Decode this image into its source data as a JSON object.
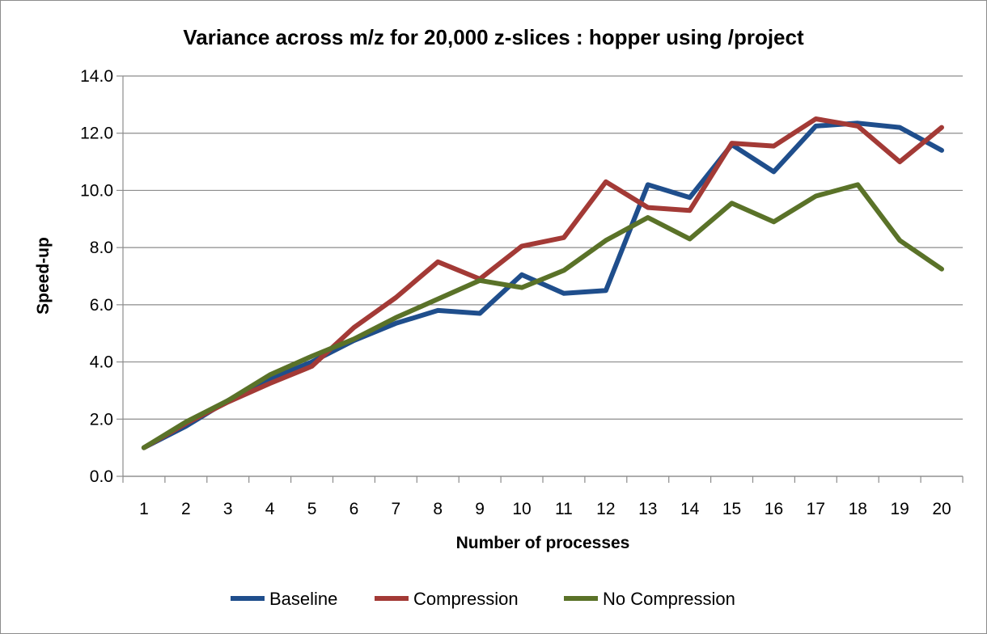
{
  "chart_data": {
    "type": "line",
    "title": "Variance across m/z for 20,000 z-slices : hopper using /project",
    "xlabel": "Number of processes",
    "ylabel": "Speed-up",
    "categories": [
      "1",
      "2",
      "3",
      "4",
      "5",
      "6",
      "7",
      "8",
      "9",
      "10",
      "11",
      "12",
      "13",
      "14",
      "15",
      "16",
      "17",
      "18",
      "19",
      "20"
    ],
    "ylim": [
      0,
      14
    ],
    "yticks": [
      "0.0",
      "2.0",
      "4.0",
      "6.0",
      "8.0",
      "10.0",
      "12.0",
      "14.0"
    ],
    "grid": "horizontal",
    "legend": "bottom",
    "series": [
      {
        "name": "Baseline",
        "color": "#1f4e8c",
        "values": [
          1.0,
          1.75,
          2.65,
          3.4,
          4.0,
          4.75,
          5.35,
          5.8,
          5.7,
          7.05,
          6.4,
          6.5,
          10.2,
          9.75,
          11.6,
          10.65,
          12.25,
          12.35,
          12.2,
          11.4
        ]
      },
      {
        "name": "Compression",
        "color": "#a33a36",
        "values": [
          1.0,
          1.85,
          2.6,
          3.25,
          3.85,
          5.2,
          6.25,
          7.5,
          6.9,
          8.05,
          8.35,
          10.3,
          9.4,
          9.3,
          11.65,
          11.55,
          12.5,
          12.25,
          11.0,
          12.2
        ]
      },
      {
        "name": "No Compression",
        "color": "#5a7228",
        "values": [
          1.0,
          1.9,
          2.65,
          3.55,
          4.2,
          4.8,
          5.55,
          6.2,
          6.85,
          6.6,
          7.2,
          8.25,
          9.05,
          8.3,
          9.55,
          8.9,
          9.8,
          10.2,
          8.25,
          7.25
        ]
      }
    ]
  }
}
